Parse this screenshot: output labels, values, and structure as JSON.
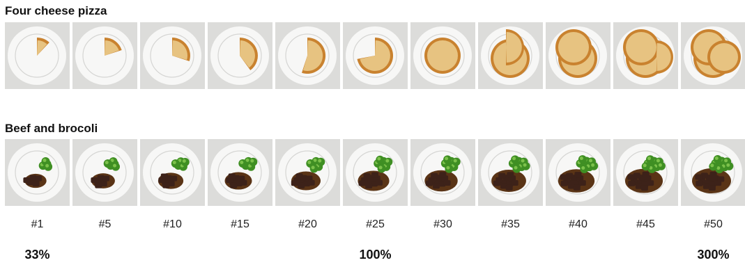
{
  "rows": [
    {
      "title": "Four cheese pizza",
      "food": "pizza",
      "levels": [
        0.12,
        0.2,
        0.3,
        0.4,
        0.55,
        0.72,
        1.0,
        1.25,
        1.5,
        1.75,
        2.0
      ]
    },
    {
      "title": "Beef and brocoli",
      "food": "beef-broccoli",
      "levels": [
        0.2,
        0.28,
        0.36,
        0.45,
        0.55,
        0.65,
        0.72,
        0.8,
        0.88,
        0.94,
        1.0
      ]
    }
  ],
  "portion_labels": [
    "#1",
    "#5",
    "#10",
    "#15",
    "#20",
    "#25",
    "#30",
    "#35",
    "#40",
    "#45",
    "#50"
  ],
  "percent_markers": [
    {
      "text": "33%",
      "portion": "#1"
    },
    {
      "text": "100%",
      "portion": "#25"
    },
    {
      "text": "300%",
      "portion": "#50"
    }
  ],
  "colors": {
    "tile_bg": "#dcdcda",
    "plate": "#f7f7f6",
    "plate_rim_line": "#d5d5d3",
    "pizza_crust": "#c9822f",
    "pizza_cheese": "#e7c381",
    "beef": "#3d2219",
    "beef_sauce": "#5a3416",
    "broccoli": "#3f8f23",
    "broccoli_light": "#7cc14b"
  }
}
